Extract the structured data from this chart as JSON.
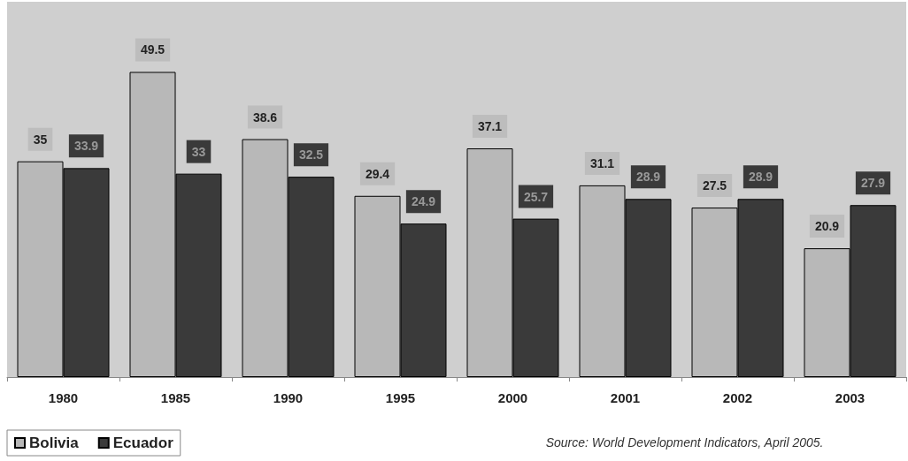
{
  "chart_data": {
    "type": "bar",
    "categories": [
      "1980",
      "1985",
      "1990",
      "1995",
      "2000",
      "2001",
      "2002",
      "2003"
    ],
    "series": [
      {
        "name": "Bolivia",
        "color": "#b8b8b8",
        "values": [
          35,
          49.5,
          38.6,
          29.4,
          37.1,
          31.1,
          27.5,
          20.9
        ]
      },
      {
        "name": "Ecuador",
        "color": "#3a3a3a",
        "values": [
          33.9,
          33,
          32.5,
          24.9,
          25.7,
          28.9,
          28.9,
          27.9
        ]
      }
    ],
    "data_labels": true,
    "tick_labels": "x",
    "legend": "bottom left",
    "annotations": [
      "Source: World Development Indicators, April 2005."
    ]
  }
}
